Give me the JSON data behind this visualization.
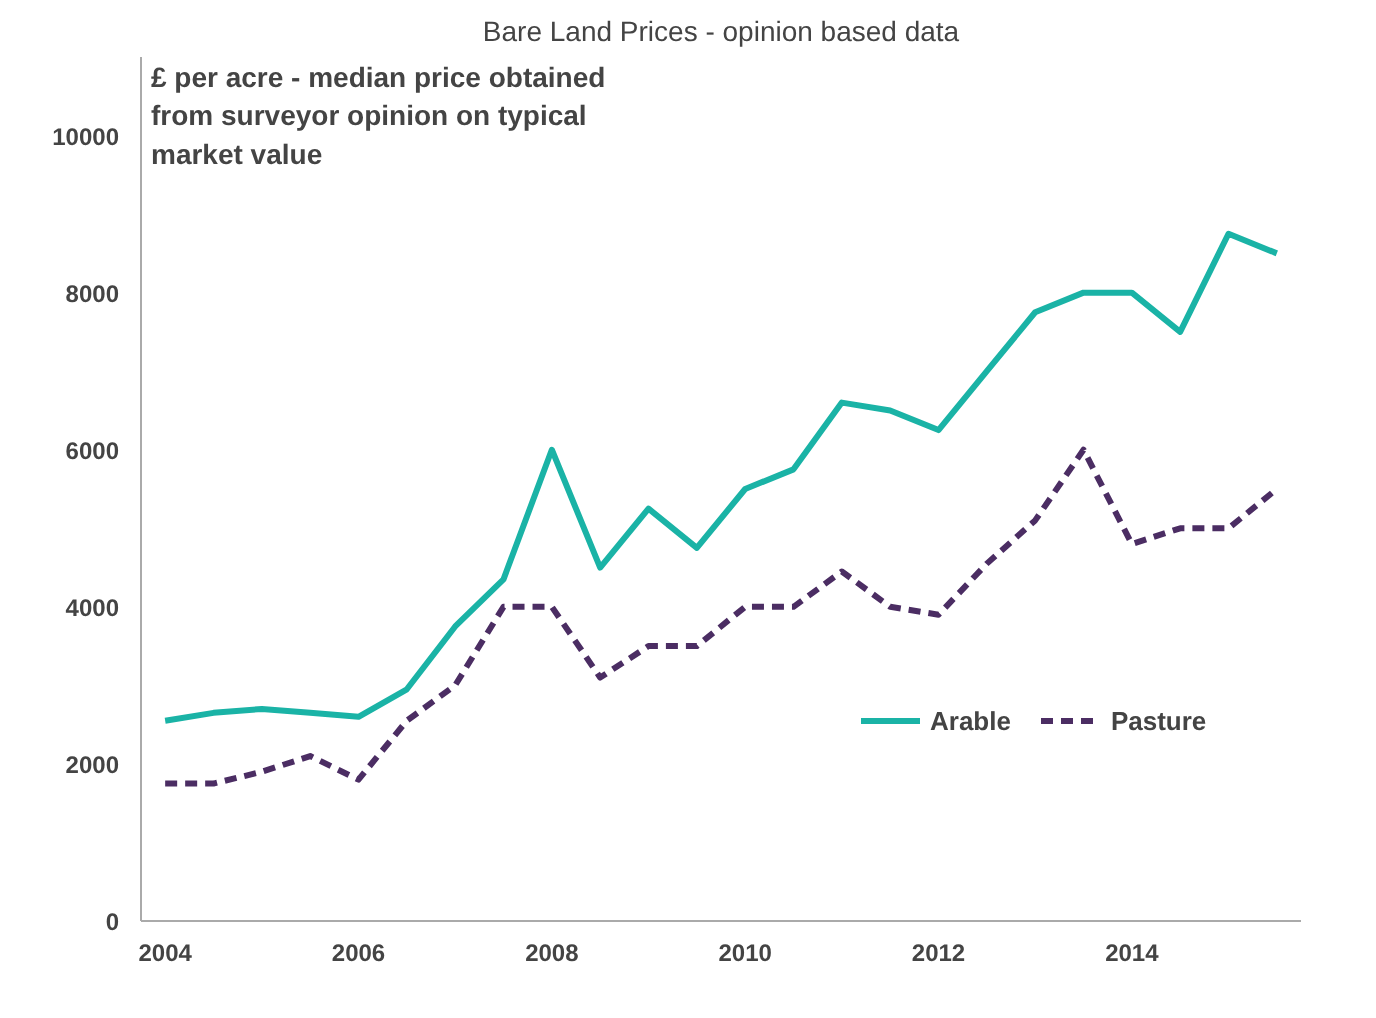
{
  "chart_data": {
    "type": "line",
    "title": "Bare Land Prices - opinion based data",
    "annotations": [
      "£ per acre - median price obtained\nfrom surveyor opinion on typical\nmarket value"
    ],
    "x": [
      2004,
      2004.5,
      2005,
      2005.5,
      2006,
      2006.5,
      2007,
      2007.5,
      2008,
      2008.5,
      2009,
      2009.5,
      2010,
      2010.5,
      2011,
      2011.5,
      2012,
      2012.5,
      2013,
      2013.5,
      2014,
      2014.5,
      2015,
      2015.5
    ],
    "series": [
      {
        "name": "Arable",
        "color": "#1ab3a6",
        "line_style": "solid",
        "values": [
          2550,
          2650,
          2700,
          2650,
          2600,
          2950,
          3750,
          4350,
          6000,
          4500,
          5250,
          4750,
          5500,
          5750,
          6600,
          6500,
          6250,
          7000,
          7750,
          8000,
          8000,
          7500,
          8750,
          8500
        ]
      },
      {
        "name": "Pasture",
        "color": "#4b2d63",
        "line_style": "dashed",
        "values": [
          1750,
          1750,
          1900,
          2100,
          1800,
          2550,
          3000,
          4000,
          4000,
          3100,
          3500,
          3500,
          4000,
          4000,
          4450,
          4000,
          3900,
          4550,
          5100,
          6000,
          4800,
          5000,
          5000,
          5500
        ]
      }
    ],
    "xlim": [
      2003.75,
      2015.75
    ],
    "xticks": [
      2004,
      2006,
      2008,
      2010,
      2012,
      2014
    ],
    "ylim": [
      0,
      11000
    ],
    "yticks": [
      0,
      2000,
      4000,
      6000,
      8000,
      10000
    ],
    "grid": false,
    "legend": "right",
    "marker": "none"
  }
}
